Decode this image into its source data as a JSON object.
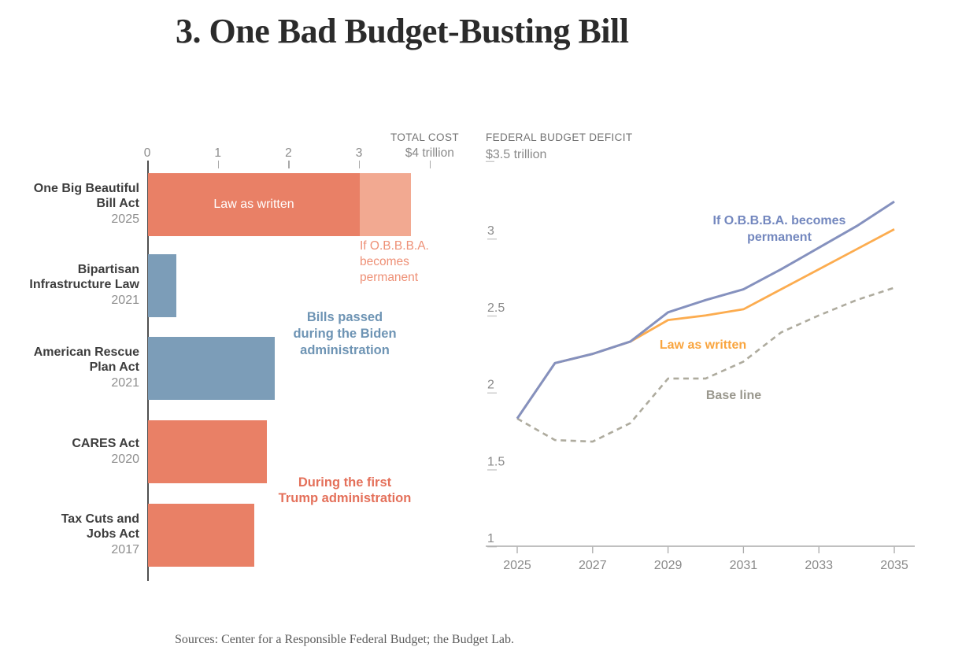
{
  "page": {
    "title": "3. One Bad Budget-Busting Bill",
    "source_note": "Sources: Center for a Responsible Federal Budget; the Budget Lab."
  },
  "colors": {
    "salmon": "#E98066",
    "salmon_light": "#F2A991",
    "salmon_annotation": "#EE9076",
    "trump_annotation": "#E4705A",
    "steel_blue": "#7C9DB8",
    "biden_annotation": "#6E94B4",
    "line_blue": "#8591BE",
    "line_blue_label": "#7387BE",
    "line_orange": "#FCAC4F",
    "line_orange_label": "#F9A53F",
    "line_gray": "#AEAB9E",
    "line_gray_label": "#9A988E"
  },
  "chart_data": [
    {
      "type": "bar",
      "orientation": "horizontal",
      "axis_title": "TOTAL COST",
      "unit": "trillions of dollars",
      "xlim": [
        0,
        4.4
      ],
      "axis_ticks": [
        {
          "value": 0,
          "label": "0"
        },
        {
          "value": 1,
          "label": "1"
        },
        {
          "value": 2,
          "label": "2"
        },
        {
          "value": 3,
          "label": "3"
        },
        {
          "value": 4,
          "label": "$4 trillion"
        }
      ],
      "bars": [
        {
          "label_lines": [
            "One Big Beautiful",
            "Bill Act"
          ],
          "year": "2025",
          "value": 3.0,
          "color_key": "salmon",
          "bar_label": "Law as written",
          "extension": {
            "value": 3.72,
            "color_key": "salmon_light",
            "label_lines": [
              "If O.B.B.B.A.",
              "becomes",
              "permanent"
            ]
          }
        },
        {
          "label_lines": [
            "Bipartisan",
            "Infrastructure Law"
          ],
          "year": "2021",
          "value": 0.4,
          "color_key": "steel_blue"
        },
        {
          "label_lines": [
            "American Rescue",
            "Plan Act"
          ],
          "year": "2021",
          "value": 1.8,
          "color_key": "steel_blue"
        },
        {
          "label_lines": [
            "CARES Act"
          ],
          "year": "2020",
          "value": 1.68,
          "color_key": "salmon"
        },
        {
          "label_lines": [
            "Tax Cuts and",
            "Jobs Act"
          ],
          "year": "2017",
          "value": 1.51,
          "color_key": "salmon"
        }
      ],
      "annotations": [
        {
          "text_lines": [
            "Bills passed",
            "during the Biden",
            "administration"
          ]
        },
        {
          "text_lines": [
            "During the first",
            "Trump administration"
          ]
        }
      ]
    },
    {
      "type": "line",
      "axis_title": "FEDERAL BUDGET DEFICIT",
      "top_tick_label": "$3.5 trillion",
      "ylim": [
        1,
        3.5
      ],
      "y_ticks": [
        "1",
        "1.5",
        "2",
        "2.5",
        "3"
      ],
      "x": [
        2025,
        2026,
        2027,
        2028,
        2029,
        2030,
        2031,
        2032,
        2033,
        2034,
        2035
      ],
      "x_tick_labels": [
        "2025",
        "2027",
        "2029",
        "2031",
        "2033",
        "2035"
      ],
      "series": [
        {
          "name": "If O.B.B.B.A. becomes permanent",
          "label_lines": [
            "If O.B.B.B.A. becomes",
            "permanent"
          ],
          "style": "solid",
          "color_key": "line_blue",
          "label_color_key": "line_blue_label",
          "values": [
            1.83,
            2.19,
            2.25,
            2.33,
            2.52,
            2.6,
            2.67,
            2.8,
            2.94,
            3.08,
            3.24
          ]
        },
        {
          "name": "Law as written",
          "label_lines": [
            "Law as written"
          ],
          "style": "solid",
          "color_key": "line_orange",
          "label_color_key": "line_orange_label",
          "values": [
            1.83,
            2.19,
            2.25,
            2.33,
            2.47,
            2.5,
            2.54,
            2.67,
            2.8,
            2.93,
            3.06
          ]
        },
        {
          "name": "Base line",
          "label_lines": [
            "Base line"
          ],
          "style": "dashed",
          "color_key": "line_gray",
          "label_color_key": "line_gray_label",
          "values": [
            1.83,
            1.69,
            1.68,
            1.8,
            2.09,
            2.09,
            2.2,
            2.39,
            2.5,
            2.6,
            2.68
          ]
        }
      ]
    }
  ]
}
